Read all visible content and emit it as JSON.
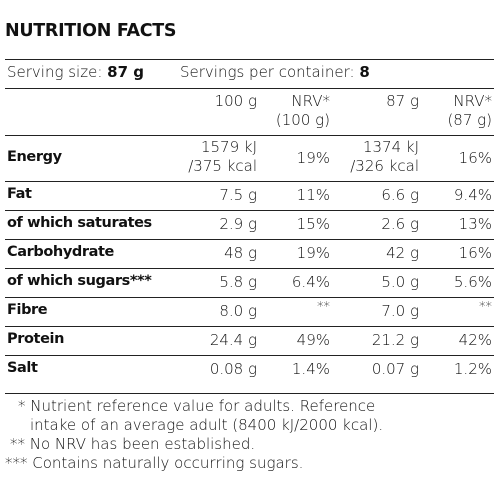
{
  "title": "NUTRITION FACTS",
  "serving": {
    "size_label": "Serving size:",
    "size_value": "87 g",
    "per_container_label": "Servings per container:",
    "per_container_value": "8"
  },
  "headers": {
    "col1": "100 g",
    "col2_line1": "NRV*",
    "col2_line2": "(100 g)",
    "col3": "87 g",
    "col4_line1": "NRV*",
    "col4_line2": "(87 g)"
  },
  "rows": [
    {
      "label": "Energy",
      "v100_line1": "1579 kJ",
      "v100_line2": "/375 kcal",
      "nrv100": "19%",
      "v87_line1": "1374 kJ",
      "v87_line2": "/326 kcal",
      "nrv87": "16%"
    },
    {
      "label": "Fat",
      "v100": "7.5 g",
      "nrv100": "11%",
      "v87": "6.6 g",
      "nrv87": "9.4%"
    },
    {
      "label": "of which saturates",
      "v100": "2.9 g",
      "nrv100": "15%",
      "v87": "2.6 g",
      "nrv87": "13%"
    },
    {
      "label": "Carbohydrate",
      "v100": "48 g",
      "nrv100": "19%",
      "v87": "42 g",
      "nrv87": "16%"
    },
    {
      "label": "of which sugars***",
      "v100": "5.8 g",
      "nrv100": "6.4%",
      "v87": "5.0 g",
      "nrv87": "5.6%"
    },
    {
      "label": "Fibre",
      "v100": "8.0 g",
      "nrv100": "**",
      "v87": "7.0 g",
      "nrv87": "**"
    },
    {
      "label": "Protein",
      "v100": "24.4 g",
      "nrv100": "49%",
      "v87": "21.2 g",
      "nrv87": "42%"
    },
    {
      "label": "Salt",
      "v100": "0.08 g",
      "nrv100": "1.4%",
      "v87": "0.07 g",
      "nrv87": "1.2%"
    }
  ],
  "footnotes": {
    "f1_line1": "* Nutrient reference value for adults. Reference",
    "f1_line2": "intake of an average adult (8400 kJ/2000 kcal).",
    "f2": "** No NRV has been established.",
    "f3": "*** Contains naturally occurring sugars."
  }
}
